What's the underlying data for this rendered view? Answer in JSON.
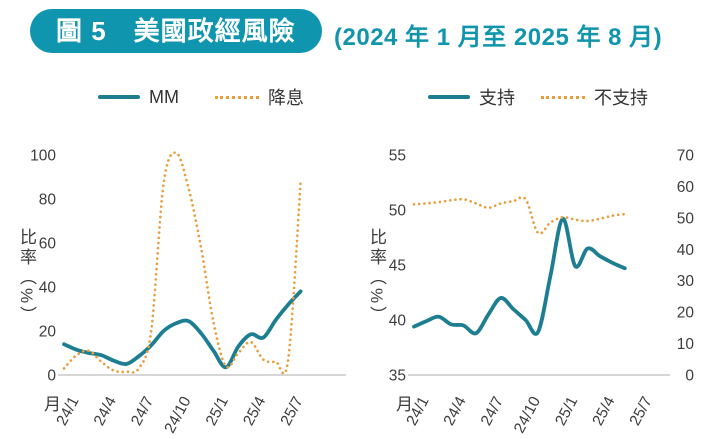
{
  "header": {
    "badge_text": "圖 5　美國政經風險",
    "subtitle": "(2024 年 1 月至 2025 年 8 月)"
  },
  "colors": {
    "badge_teal": "#0f95ad",
    "subtitle_teal": "#1095ad",
    "line_teal": "#1c7e90",
    "line_orange": "#e99e3d",
    "axis_text": "#3d3d3d",
    "axis_line": "#c9c9c9",
    "legend_text": "#333333"
  },
  "chart_data": [
    {
      "id": "left",
      "type": "line",
      "ylabel": "比率（%）",
      "xlabel": "月",
      "legend_position": "top",
      "grid": false,
      "months": [
        "24/1",
        "24/2",
        "24/3",
        "24/4",
        "24/5",
        "24/6",
        "24/7",
        "24/8",
        "24/9",
        "24/10",
        "24/11",
        "24/12",
        "25/1",
        "25/2",
        "25/3",
        "25/4",
        "25/5",
        "25/6",
        "25/7",
        "25/8"
      ],
      "x_tick_labels": [
        "24/1",
        "24/4",
        "24/7",
        "24/10",
        "25/1",
        "25/4",
        "25/7"
      ],
      "x_tick_indices": [
        0,
        3,
        6,
        9,
        12,
        15,
        18
      ],
      "y_axis": {
        "min": 0,
        "max": 100,
        "ticks": [
          0,
          20,
          40,
          60,
          80,
          100
        ]
      },
      "series": [
        {
          "name": "MM",
          "line": "solid",
          "axis": "left",
          "color": "#1c7e90",
          "values": [
            14,
            11.5,
            10,
            9,
            6.5,
            5,
            8.5,
            13.5,
            20,
            23.5,
            24.5,
            19,
            11,
            3.5,
            13,
            18.5,
            17,
            25,
            32,
            38
          ]
        },
        {
          "name": "降息",
          "line": "dotted",
          "axis": "left",
          "color": "#e99e3d",
          "values": [
            3,
            9,
            11,
            6,
            2,
            1.5,
            3,
            20,
            87,
            101,
            85,
            58,
            24,
            4,
            10,
            15,
            7,
            6,
            7,
            88
          ]
        }
      ]
    },
    {
      "id": "right",
      "type": "line",
      "ylabel": "比率（%）",
      "xlabel": "月",
      "legend_position": "top",
      "grid": false,
      "months": [
        "24/1",
        "24/2",
        "24/3",
        "24/4",
        "24/5",
        "24/6",
        "24/7",
        "24/8",
        "24/9",
        "24/10",
        "24/11",
        "24/12",
        "25/1",
        "25/2",
        "25/3",
        "25/4",
        "25/5",
        "25/6"
      ],
      "x_tick_labels": [
        "24/1",
        "24/4",
        "24/7",
        "24/10",
        "25/1",
        "25/4",
        "25/7"
      ],
      "x_tick_indices": [
        0,
        3,
        6,
        9,
        12,
        15,
        18
      ],
      "y_axis": {
        "min": 35,
        "max": 55,
        "ticks": [
          35,
          40,
          45,
          50,
          55
        ]
      },
      "y_axis_right": {
        "min": 0,
        "max": 70,
        "ticks": [
          0,
          10,
          20,
          30,
          40,
          50,
          60,
          70
        ]
      },
      "series": [
        {
          "name": "支持",
          "line": "solid",
          "axis": "left",
          "color": "#1c7e90",
          "values": [
            39.4,
            39.9,
            40.3,
            39.6,
            39.5,
            38.8,
            40.5,
            42,
            41,
            40,
            38.9,
            44,
            49.2,
            44.9,
            46.5,
            45.8,
            45.2,
            44.7
          ]
        },
        {
          "name": "不支持",
          "line": "dotted",
          "axis": "right",
          "color": "#e99e3d",
          "values": [
            54.3,
            54.6,
            55,
            55.6,
            55.9,
            54.6,
            53.2,
            54.6,
            55.3,
            55.9,
            45.2,
            48.5,
            50.2,
            49.4,
            49,
            49.7,
            50.7,
            51.2
          ]
        }
      ]
    }
  ]
}
